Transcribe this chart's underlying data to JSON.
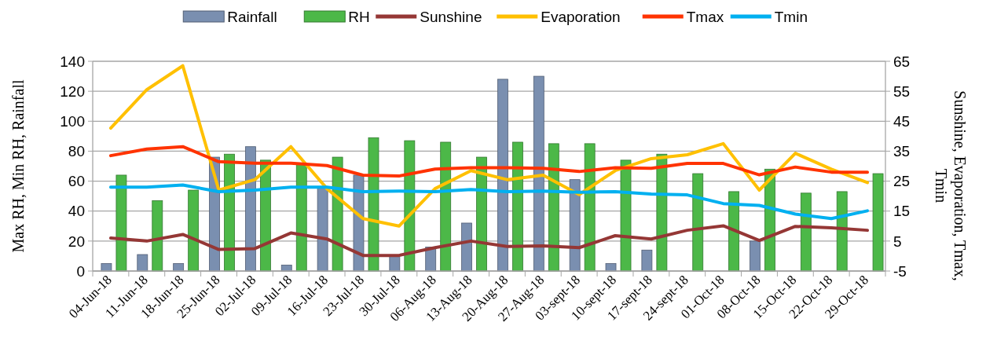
{
  "chart_data": {
    "type": "bar",
    "xlabel": null,
    "ylabel": "Max RH, Min RH, Rainfall",
    "y2label": "Sunshine, Evaporation, Tmax, Tmin",
    "categories": [
      "04-Jun-18",
      "11-Jun-18",
      "18-Jun-18",
      "25-Jun-18",
      "02-Jul-18",
      "09-Jul-18",
      "16-Jul-18",
      "23-Jul-18",
      "30-Jul-18",
      "06-Aug-18",
      "13-Aug-18",
      "20-Aug-18",
      "27-Aug-18",
      "03-sept-18",
      "10-sept-18",
      "17-sept-18",
      "24-sept-18",
      "01-Oct-18",
      "08-Oct-18",
      "15-Oct-18",
      "22-Oct-18",
      "29-Oct-18"
    ],
    "series": [
      {
        "name": "Rainfall",
        "type": "bar",
        "color": "#7a8fb0",
        "values": [
          5,
          11,
          5,
          76,
          83,
          4,
          56,
          64,
          10,
          16,
          32,
          128,
          130,
          61,
          5,
          14,
          0,
          0,
          20,
          0,
          0,
          0
        ]
      },
      {
        "name": "RH",
        "type": "bar",
        "color": "#4cb848",
        "values": [
          64,
          47,
          54,
          78,
          74,
          72,
          76,
          89,
          87,
          86,
          76,
          86,
          85,
          85,
          74,
          78,
          65,
          53,
          68,
          52,
          53,
          65
        ]
      },
      {
        "name": "Sunshine",
        "type": "line",
        "axis": "y2",
        "color": "#953735",
        "values": [
          6,
          5,
          7.2,
          2.2,
          2.5,
          7.7,
          5.7,
          0.2,
          0.2,
          2.8,
          5,
          3.2,
          3.4,
          2.8,
          6.8,
          5.7,
          8.6,
          10.1,
          5.2,
          9.9,
          9.4,
          8.6
        ]
      },
      {
        "name": "Evaporation",
        "type": "line",
        "axis": "y2",
        "color": "#ffc000",
        "values": [
          42.7,
          55.5,
          63.5,
          22,
          25.5,
          36.5,
          22.5,
          12.5,
          10,
          22.5,
          28.5,
          25.5,
          27,
          20.5,
          28.5,
          32.5,
          33.8,
          37.5,
          22,
          34.3,
          29,
          24.5
        ]
      },
      {
        "name": "Tmax",
        "type": "line",
        "axis": "y2",
        "color": "#ff3300",
        "values": [
          33.5,
          35.7,
          36.5,
          31.5,
          31,
          31,
          30.2,
          27,
          26.7,
          29,
          29.5,
          29.5,
          29.3,
          28.2,
          29.5,
          29.3,
          30.9,
          30.9,
          27.1,
          29.7,
          28,
          28
        ]
      },
      {
        "name": "Tmin",
        "type": "line",
        "axis": "y2",
        "color": "#00b0f0",
        "values": [
          23,
          23,
          23.7,
          21.5,
          22,
          23,
          23,
          21.5,
          21.7,
          21.5,
          22.2,
          21.5,
          21.7,
          21.3,
          21.5,
          20.7,
          20.4,
          17.5,
          16.9,
          14,
          12.5,
          15.1
        ]
      }
    ],
    "ylim": [
      0,
      140
    ],
    "yticks": [
      0,
      20,
      40,
      60,
      80,
      100,
      120,
      140
    ],
    "y2lim": [
      -5,
      65
    ],
    "y2ticks": [
      -5,
      5,
      15,
      25,
      35,
      45,
      55,
      65
    ],
    "grid": "y",
    "legend": "top",
    "marker": "none",
    "line_style": "solid"
  }
}
